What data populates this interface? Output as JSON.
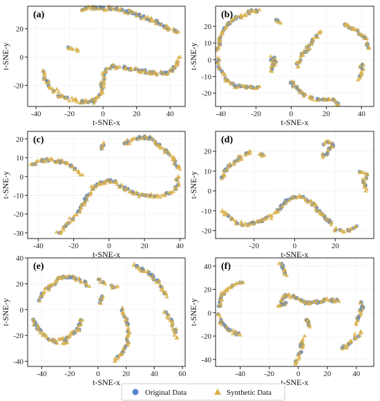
{
  "legend": {
    "placement": "bottom-center",
    "items": [
      {
        "label": "Original Data",
        "color": "#5b84c4",
        "marker": "circle"
      },
      {
        "label": "Synthetic Data",
        "color": "#d9b04a",
        "marker": "triangle"
      }
    ]
  },
  "chart_data": [
    {
      "type": "scatter",
      "panel_label": "(a)",
      "xlabel": "t-SNE-x",
      "ylabel": "t-SNE-y",
      "xlim": [
        -45,
        49
      ],
      "ylim": [
        -35,
        36
      ],
      "xticks": [
        -40,
        -20,
        0,
        20,
        40
      ],
      "yticks": [
        -20,
        0,
        20
      ],
      "grid": true,
      "curves": [
        [
          [
            -12,
            34
          ],
          [
            -2,
            35
          ],
          [
            8,
            34
          ],
          [
            18,
            31
          ],
          [
            30,
            26
          ],
          [
            38,
            21
          ],
          [
            42,
            19
          ],
          [
            45,
            18
          ]
        ],
        [
          [
            -36,
            -10
          ],
          [
            -34,
            -17
          ],
          [
            -31,
            -22
          ],
          [
            -26,
            -27
          ],
          [
            -20,
            -30
          ],
          [
            -13,
            -32
          ],
          [
            -6,
            -31
          ],
          [
            -1,
            -25
          ],
          [
            0,
            -18
          ],
          [
            1,
            -11
          ],
          [
            4,
            -7
          ],
          [
            10,
            -7
          ]
        ],
        [
          [
            12,
            -7
          ],
          [
            18,
            -9
          ],
          [
            24,
            -10
          ],
          [
            28,
            -11
          ],
          [
            33,
            -12
          ],
          [
            38,
            -11
          ],
          [
            43,
            -7
          ],
          [
            46,
            0
          ]
        ],
        [
          [
            -21,
            6
          ],
          [
            -18,
            6
          ],
          [
            -15,
            5
          ]
        ]
      ]
    },
    {
      "type": "scatter",
      "panel_label": "(b)",
      "xlabel": "t-SNE-x",
      "ylabel": "t-SNE-y",
      "xlim": [
        -43,
        47
      ],
      "ylim": [
        -28,
        32
      ],
      "xticks": [
        -40,
        -20,
        0,
        20,
        40
      ],
      "yticks": [
        -20,
        -10,
        0,
        10,
        20
      ],
      "grid": true,
      "curves": [
        [
          [
            -42,
            5
          ],
          [
            -40,
            14
          ],
          [
            -37,
            20
          ],
          [
            -33,
            24
          ],
          [
            -28,
            27
          ],
          [
            -22,
            29
          ],
          [
            -18,
            30
          ]
        ],
        [
          [
            -42,
            0
          ],
          [
            -40,
            -7
          ],
          [
            -37,
            -12
          ],
          [
            -33,
            -15
          ],
          [
            -27,
            -16
          ],
          [
            -22,
            -17
          ],
          [
            -18,
            -16
          ]
        ],
        [
          [
            -8,
            24
          ],
          [
            -6,
            22
          ]
        ],
        [
          [
            -11,
            2
          ],
          [
            -11,
            -7
          ]
        ],
        [
          [
            3,
            -4
          ],
          [
            6,
            2
          ],
          [
            10,
            8
          ],
          [
            14,
            14
          ],
          [
            17,
            17
          ]
        ],
        [
          [
            0,
            -13
          ],
          [
            3,
            -17
          ],
          [
            8,
            -21
          ],
          [
            14,
            -24
          ],
          [
            20,
            -24
          ],
          [
            25,
            -25
          ],
          [
            27,
            -27
          ]
        ],
        [
          [
            30,
            21
          ],
          [
            35,
            19
          ],
          [
            40,
            15
          ],
          [
            43,
            11
          ],
          [
            44,
            7
          ]
        ],
        [
          [
            40,
            -2
          ],
          [
            40,
            -7
          ],
          [
            38,
            -12
          ]
        ],
        [
          [
            -9,
            1
          ],
          [
            -9,
            -3
          ]
        ]
      ]
    },
    {
      "type": "scatter",
      "panel_label": "(c)",
      "xlabel": "t-SNE-x",
      "ylabel": "t-SNE-y",
      "xlim": [
        -46,
        43
      ],
      "ylim": [
        -33,
        24
      ],
      "xticks": [
        -40,
        -20,
        0,
        20,
        40
      ],
      "yticks": [
        -30,
        -20,
        -10,
        0,
        10,
        20
      ],
      "grid": true,
      "curves": [
        [
          [
            -44,
            6
          ],
          [
            -40,
            8
          ],
          [
            -34,
            9
          ],
          [
            -28,
            8
          ],
          [
            -24,
            7
          ],
          [
            -21,
            5
          ],
          [
            -18,
            3
          ],
          [
            -15,
            1
          ]
        ],
        [
          [
            -29,
            -30
          ],
          [
            -25,
            -27
          ],
          [
            -20,
            -22
          ],
          [
            -16,
            -17
          ],
          [
            -12,
            -10
          ],
          [
            -8,
            -5
          ],
          [
            -4,
            -3
          ],
          [
            0,
            -2
          ],
          [
            4,
            -3
          ],
          [
            8,
            -6
          ],
          [
            13,
            -8
          ],
          [
            18,
            -10
          ],
          [
            24,
            -10
          ],
          [
            30,
            -10
          ],
          [
            35,
            -9
          ],
          [
            38,
            -5
          ],
          [
            39,
            0
          ]
        ],
        [
          [
            9,
            17
          ],
          [
            12,
            19
          ],
          [
            16,
            20
          ],
          [
            20,
            21
          ],
          [
            24,
            20
          ],
          [
            28,
            17
          ],
          [
            32,
            14
          ],
          [
            36,
            10
          ],
          [
            38,
            6
          ],
          [
            40,
            4
          ]
        ],
        [
          [
            -5,
            15
          ],
          [
            -3,
            18
          ]
        ]
      ]
    },
    {
      "type": "scatter",
      "panel_label": "(d)",
      "xlabel": "t-SNE-x",
      "ylabel": "t-SNE-y",
      "xlim": [
        -39,
        39
      ],
      "ylim": [
        -24,
        30
      ],
      "xticks": [
        -20,
        0,
        20
      ],
      "yticks": [
        -20,
        -10,
        0,
        10,
        20
      ],
      "grid": true,
      "curves": [
        [
          [
            -36,
            7
          ],
          [
            -33,
            12
          ],
          [
            -29,
            15
          ],
          [
            -25,
            18
          ],
          [
            -22,
            20
          ]
        ],
        [
          [
            -18,
            19
          ],
          [
            -15,
            18
          ]
        ],
        [
          [
            -36,
            -10
          ],
          [
            -33,
            -12
          ],
          [
            -30,
            -15
          ],
          [
            -25,
            -17
          ],
          [
            -18,
            -16
          ],
          [
            -12,
            -13
          ],
          [
            -8,
            -9
          ],
          [
            -4,
            -5
          ],
          [
            0,
            -3
          ],
          [
            4,
            -3
          ],
          [
            7,
            -5
          ],
          [
            10,
            -8
          ],
          [
            13,
            -11
          ],
          [
            16,
            -14
          ],
          [
            18,
            -17
          ]
        ],
        [
          [
            14,
            24
          ],
          [
            17,
            25
          ],
          [
            19,
            23
          ],
          [
            16,
            20
          ],
          [
            14,
            17
          ]
        ],
        [
          [
            30,
            -18
          ],
          [
            25,
            -20
          ],
          [
            20,
            -19
          ]
        ],
        [
          [
            32,
            9
          ],
          [
            35,
            8
          ],
          [
            34,
            4
          ],
          [
            35,
            0
          ]
        ]
      ]
    },
    {
      "type": "scatter",
      "panel_label": "(e)",
      "xlabel": "t-SNE-x",
      "ylabel": "t-SNE-y",
      "xlim": [
        -50,
        62
      ],
      "ylim": [
        -44,
        40
      ],
      "xticks": [
        -40,
        -20,
        0,
        20,
        40,
        60
      ],
      "yticks": [
        -40,
        -20,
        0,
        20,
        40
      ],
      "grid": true,
      "curves": [
        [
          [
            -42,
            8
          ],
          [
            -38,
            14
          ],
          [
            -32,
            20
          ],
          [
            -24,
            26
          ],
          [
            -16,
            24
          ],
          [
            -10,
            21
          ],
          [
            -6,
            18
          ]
        ],
        [
          [
            -46,
            -8
          ],
          [
            -43,
            -14
          ],
          [
            -38,
            -20
          ],
          [
            -30,
            -25
          ],
          [
            -22,
            -22
          ],
          [
            -14,
            -15
          ],
          [
            -11,
            -8
          ]
        ],
        [
          [
            0,
            23
          ],
          [
            5,
            20
          ]
        ],
        [
          [
            2,
            10
          ],
          [
            2,
            5
          ]
        ],
        [
          [
            10,
            18
          ],
          [
            14,
            18
          ]
        ],
        [
          [
            17,
            1
          ],
          [
            20,
            -8
          ],
          [
            22,
            -18
          ],
          [
            21,
            -26
          ],
          [
            18,
            -32
          ],
          [
            14,
            -36
          ],
          [
            12,
            -40
          ]
        ],
        [
          [
            26,
            35
          ],
          [
            32,
            31
          ],
          [
            38,
            27
          ],
          [
            42,
            22
          ],
          [
            46,
            16
          ],
          [
            49,
            10
          ]
        ],
        [
          [
            48,
            -2
          ],
          [
            52,
            -8
          ],
          [
            54,
            -14
          ],
          [
            56,
            -22
          ]
        ],
        [
          [
            -22,
            -24
          ],
          [
            -25,
            -26
          ]
        ]
      ]
    },
    {
      "type": "scatter",
      "panel_label": "(f)",
      "xlabel": "t-SNE-x",
      "ylabel": "t-SNE-y",
      "xlim": [
        -57,
        52
      ],
      "ylim": [
        -46,
        47
      ],
      "xticks": [
        -40,
        -20,
        0,
        20,
        40
      ],
      "yticks": [
        -40,
        -20,
        0,
        20,
        40
      ],
      "grid": true,
      "curves": [
        [
          [
            -55,
            5
          ],
          [
            -53,
            14
          ],
          [
            -50,
            20
          ],
          [
            -44,
            24
          ],
          [
            -38,
            26
          ]
        ],
        [
          [
            -55,
            -2
          ],
          [
            -52,
            -10
          ],
          [
            -46,
            -16
          ],
          [
            -40,
            -19
          ]
        ],
        [
          [
            -12,
            43
          ],
          [
            -10,
            37
          ],
          [
            -8,
            32
          ]
        ],
        [
          [
            -12,
            7
          ],
          [
            -10,
            14
          ],
          [
            -6,
            15
          ],
          [
            0,
            12
          ],
          [
            6,
            8
          ],
          [
            12,
            9
          ],
          [
            20,
            11
          ],
          [
            28,
            10
          ]
        ],
        [
          [
            6,
            -5
          ],
          [
            8,
            -12
          ]
        ],
        [
          [
            4,
            -20
          ],
          [
            2,
            -30
          ],
          [
            0,
            -38
          ],
          [
            -2,
            -44
          ]
        ],
        [
          [
            44,
            10
          ],
          [
            44,
            4
          ],
          [
            42,
            -4
          ],
          [
            40,
            -10
          ]
        ],
        [
          [
            30,
            -30
          ],
          [
            36,
            -26
          ],
          [
            40,
            -20
          ],
          [
            43,
            -16
          ]
        ],
        [
          [
            -8,
            8
          ],
          [
            -14,
            6
          ]
        ]
      ]
    }
  ]
}
